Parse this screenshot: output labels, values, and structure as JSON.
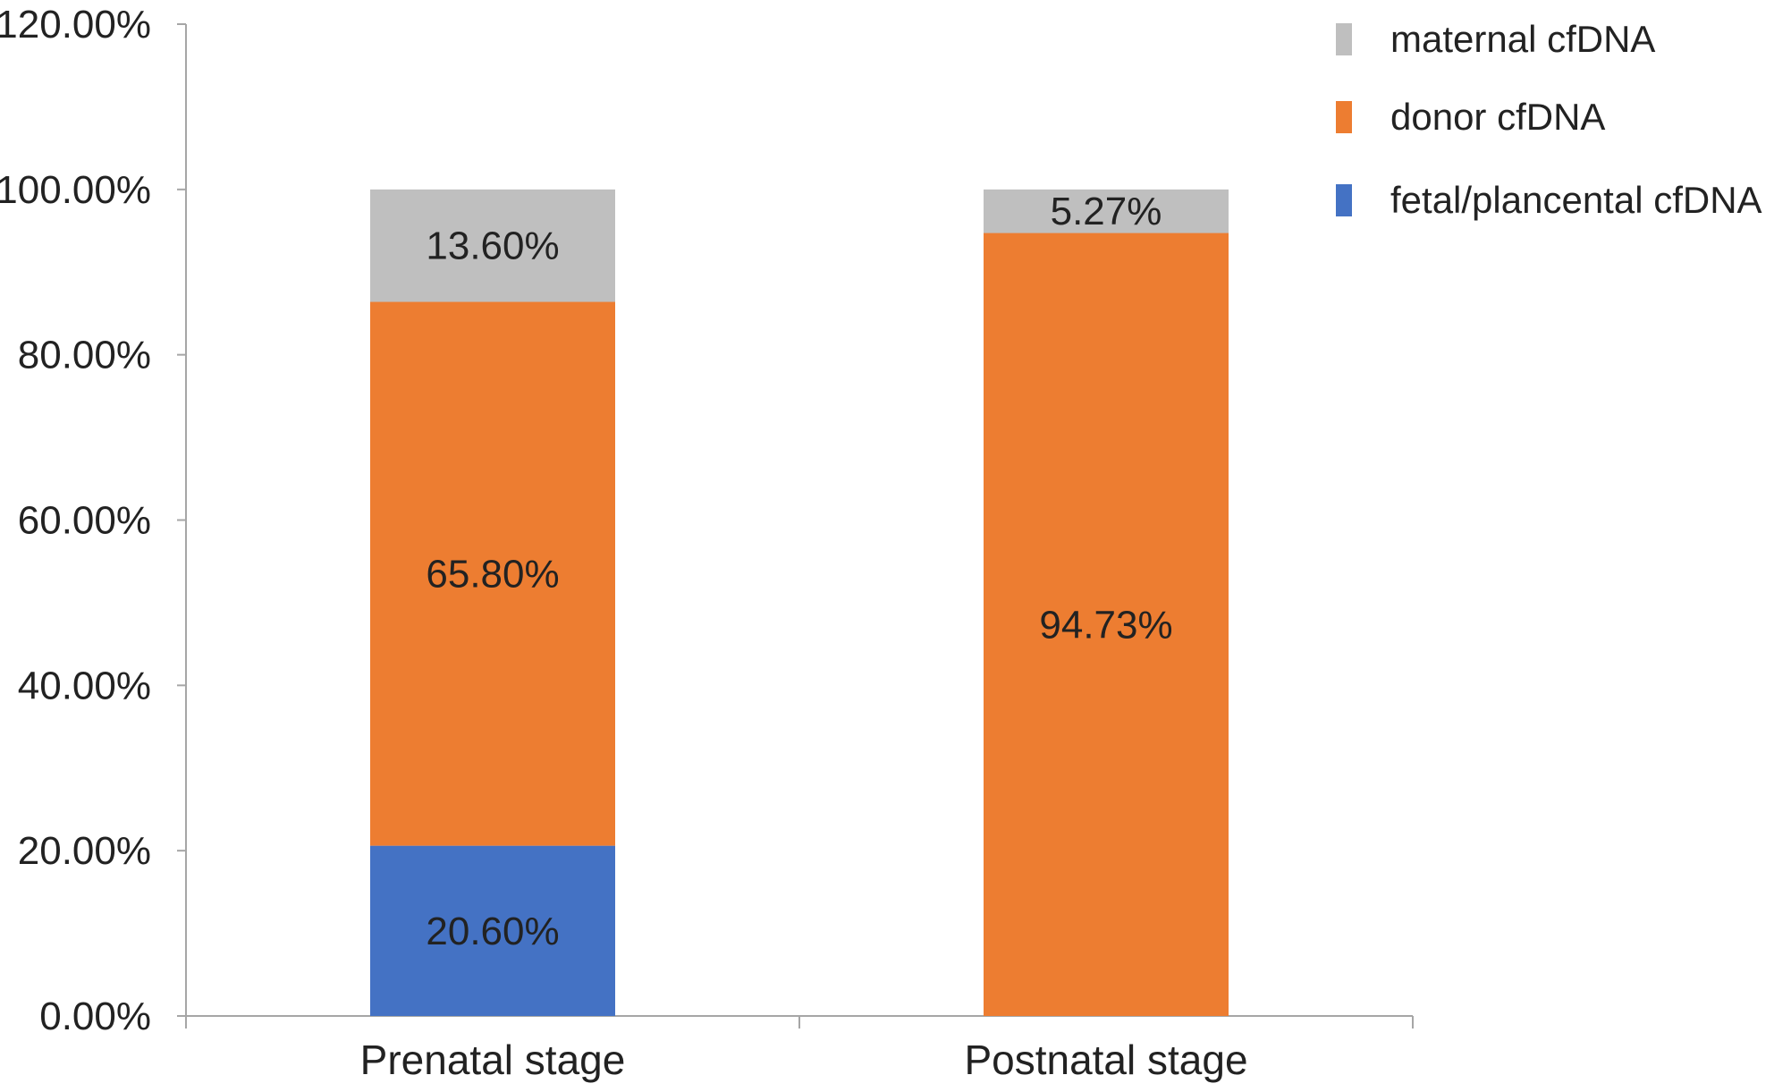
{
  "chart_data": {
    "type": "bar",
    "stacked": true,
    "categories": [
      "Prenatal stage",
      "Postnatal stage"
    ],
    "series": [
      {
        "name": "fetal/plancental cfDNA",
        "color": "#4472c4",
        "values": [
          20.6,
          0
        ],
        "labels": [
          "20.60%",
          ""
        ]
      },
      {
        "name": "donor cfDNA",
        "color": "#ed7d31",
        "values": [
          65.8,
          94.73
        ],
        "labels": [
          "65.80%",
          "94.73%"
        ]
      },
      {
        "name": "maternal cfDNA",
        "color": "#bfbfbf",
        "values": [
          13.6,
          5.27
        ],
        "labels": [
          "13.60%",
          "5.27%"
        ]
      }
    ],
    "legend_order": [
      "maternal cfDNA",
      "donor cfDNA",
      "fetal/plancental cfDNA"
    ],
    "legend_position": "top-right",
    "ylim": [
      0,
      120
    ],
    "yticks": [
      0,
      20,
      40,
      60,
      80,
      100,
      120
    ],
    "ytick_labels": [
      "0.00%",
      "20.00%",
      "40.00%",
      "60.00%",
      "80.00%",
      "100.00%",
      "120.00%"
    ],
    "grid": false,
    "title": "",
    "xlabel": "",
    "ylabel": ""
  }
}
